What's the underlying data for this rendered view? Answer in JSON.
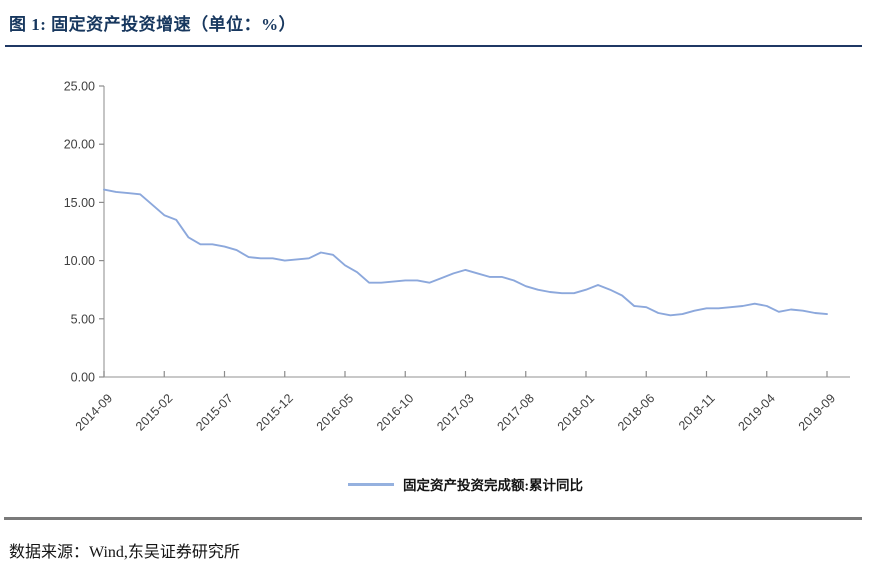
{
  "figure": {
    "title": "图 1: 固定资产投资增速（单位：%）",
    "source": "数据来源：Wind,东吴证券研究所"
  },
  "colors": {
    "title_navy": "#17375E",
    "title_rule": "#1F3864",
    "series_line": "#8CA8DC",
    "legend_swatch": "#95B1DF",
    "axis": "#A6A6A6",
    "tick": "#8C8C8C",
    "axis_text": "#404040",
    "bottom_rule": "#7a7a7a"
  },
  "chart_data": {
    "type": "line",
    "title": "固定资产投资增速（单位：%）",
    "xlabel": "",
    "ylabel": "",
    "ylim": [
      0,
      25
    ],
    "grid": false,
    "markers": false,
    "legend_position": "bottom-center",
    "y_axis": {
      "values": [
        25,
        20,
        15,
        10,
        5,
        0
      ],
      "labels": [
        "25.00",
        "20.00",
        "15.00",
        "10.00",
        "5.00",
        "0.00"
      ]
    },
    "x_axis": {
      "tick_every": 5,
      "tick_labels": [
        "2014-09",
        "2015-02",
        "2015-07",
        "2015-12",
        "2016-05",
        "2016-10",
        "2017-03",
        "2017-08",
        "2018-01",
        "2018-06",
        "2018-11",
        "2019-04",
        "2019-09"
      ],
      "label_rotation_deg": -45
    },
    "x": [
      "2014-09",
      "2014-10",
      "2014-11",
      "2014-12",
      "2015-01",
      "2015-02",
      "2015-03",
      "2015-04",
      "2015-05",
      "2015-06",
      "2015-07",
      "2015-08",
      "2015-09",
      "2015-10",
      "2015-11",
      "2015-12",
      "2016-01",
      "2016-02",
      "2016-03",
      "2016-04",
      "2016-05",
      "2016-06",
      "2016-07",
      "2016-08",
      "2016-09",
      "2016-10",
      "2016-11",
      "2016-12",
      "2017-01",
      "2017-02",
      "2017-03",
      "2017-04",
      "2017-05",
      "2017-06",
      "2017-07",
      "2017-08",
      "2017-09",
      "2017-10",
      "2017-11",
      "2017-12",
      "2018-01",
      "2018-02",
      "2018-03",
      "2018-04",
      "2018-05",
      "2018-06",
      "2018-07",
      "2018-08",
      "2018-09",
      "2018-10",
      "2018-11",
      "2018-12",
      "2019-01",
      "2019-02",
      "2019-03",
      "2019-04",
      "2019-05",
      "2019-06",
      "2019-07",
      "2019-08",
      "2019-09"
    ],
    "series": [
      {
        "name": "固定资产投资完成额:累计同比",
        "color": "#8CA8DC",
        "values": [
          16.1,
          15.9,
          15.8,
          15.7,
          14.8,
          13.9,
          13.5,
          12.0,
          11.4,
          11.4,
          11.2,
          10.9,
          10.3,
          10.2,
          10.2,
          10.0,
          10.1,
          10.2,
          10.7,
          10.5,
          9.6,
          9.0,
          8.1,
          8.1,
          8.2,
          8.3,
          8.3,
          8.1,
          8.5,
          8.9,
          9.2,
          8.9,
          8.6,
          8.6,
          8.3,
          7.8,
          7.5,
          7.3,
          7.2,
          7.2,
          7.5,
          7.9,
          7.5,
          7.0,
          6.1,
          6.0,
          5.5,
          5.3,
          5.4,
          5.7,
          5.9,
          5.9,
          6.0,
          6.1,
          6.3,
          6.1,
          5.6,
          5.8,
          5.7,
          5.5,
          5.4
        ]
      }
    ]
  }
}
